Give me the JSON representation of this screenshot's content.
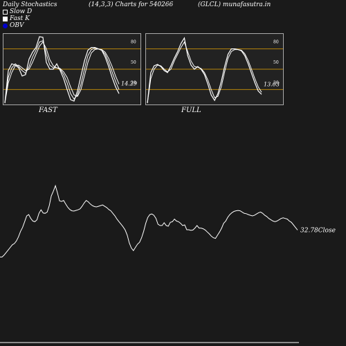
{
  "header": {
    "left": "Daily Stochastics",
    "center": "(14,3,3) Charts for 540266",
    "right": "(GLCL) munafasutra.in"
  },
  "legend": [
    {
      "label": "Slow  D",
      "swatch": "slow"
    },
    {
      "label": "Fast K",
      "swatch": "fast"
    },
    {
      "label": "OBV",
      "swatch": "obv"
    }
  ],
  "colors": {
    "background": "#1a1a1a",
    "panel_bg": "#222222",
    "line": "#ffffff",
    "obv": "#0000cc",
    "level": "#b8860b"
  },
  "chart_data": [
    {
      "type": "line",
      "title": "FAST",
      "ylim": [
        0,
        100
      ],
      "levels": [
        20,
        50,
        80
      ],
      "level_labels": [
        "20",
        "50",
        "80"
      ],
      "last_label": "14.29",
      "series": [
        {
          "values": [
            0,
            48,
            58,
            56,
            52,
            40,
            42,
            65,
            75,
            82,
            98,
            97,
            60,
            50,
            50,
            58,
            48,
            36,
            20,
            5,
            3,
            18,
            40,
            62,
            78,
            82,
            82,
            80,
            78,
            68,
            54,
            38,
            24,
            14
          ]
        },
        {
          "values": [
            0,
            38,
            52,
            58,
            54,
            48,
            44,
            54,
            68,
            78,
            90,
            92,
            72,
            56,
            52,
            52,
            50,
            42,
            30,
            14,
            6,
            12,
            28,
            50,
            70,
            79,
            81,
            80,
            78,
            72,
            60,
            46,
            32,
            20
          ]
        },
        {
          "values": [
            0,
            30,
            45,
            55,
            56,
            52,
            48,
            50,
            60,
            72,
            84,
            90,
            80,
            64,
            55,
            52,
            51,
            46,
            38,
            24,
            12,
            10,
            20,
            40,
            60,
            74,
            79,
            80,
            79,
            75,
            66,
            54,
            40,
            28
          ]
        }
      ]
    },
    {
      "type": "line",
      "title": "FULL",
      "ylim": [
        0,
        100
      ],
      "levels": [
        20,
        50,
        80
      ],
      "level_labels": [
        "20",
        "50",
        "80"
      ],
      "last_label": "13.03",
      "series": [
        {
          "values": [
            0,
            45,
            55,
            57,
            54,
            48,
            45,
            55,
            66,
            76,
            88,
            96,
            70,
            56,
            50,
            54,
            50,
            42,
            28,
            12,
            4,
            14,
            32,
            54,
            72,
            80,
            80,
            79,
            77,
            70,
            58,
            44,
            30,
            18,
            13
          ]
        },
        {
          "values": [
            0,
            36,
            50,
            56,
            55,
            50,
            46,
            50,
            62,
            72,
            82,
            90,
            76,
            62,
            54,
            53,
            51,
            45,
            34,
            20,
            8,
            10,
            24,
            46,
            66,
            76,
            79,
            79,
            78,
            73,
            63,
            50,
            36,
            24,
            16
          ]
        }
      ]
    },
    {
      "type": "line",
      "last_label": "32.78",
      "last_suffix": "Close",
      "series": [
        {
          "name": "Close",
          "values": [
            40,
            40,
            46,
            54,
            62,
            70,
            78,
            82,
            90,
            103,
            120,
            132,
            150,
            168,
            172,
            160,
            152,
            150,
            156,
            176,
            187,
            177,
            176,
            180,
            200,
            230,
            245,
            262,
            240,
            215,
            213,
            216,
            205,
            195,
            188,
            184,
            183,
            185,
            187,
            190,
            198,
            208,
            216,
            212,
            205,
            200,
            197,
            196,
            198,
            200,
            202,
            198,
            194,
            188,
            184,
            176,
            168,
            158,
            150,
            142,
            134,
            124,
            108,
            84,
            68,
            60,
            70,
            80,
            86,
            100,
            120,
            145,
            163,
            172,
            174,
            170,
            160,
            142,
            138,
            138,
            147,
            138,
            136,
            148,
            150,
            158,
            152,
            150,
            145,
            138,
            140,
            125,
            125,
            123,
            124,
            130,
            138,
            130,
            130,
            128,
            124,
            118,
            112,
            105,
            100,
            98,
            108,
            118,
            130,
            145,
            152,
            164,
            172,
            178,
            182,
            184,
            185,
            184,
            180,
            176,
            175,
            172,
            170,
            168,
            170,
            174,
            178,
            180,
            176,
            170,
            166,
            160,
            156,
            152,
            150,
            152,
            156,
            160,
            162,
            160,
            158,
            152,
            148,
            140,
            132,
            124
          ]
        },
        {
          "name": "OBV",
          "values": [
            0,
            0,
            0,
            0,
            0,
            0,
            0,
            0,
            0,
            0,
            0,
            0,
            0,
            0,
            0,
            0,
            0,
            0,
            0,
            0,
            0,
            0,
            0,
            0,
            0,
            0,
            0,
            0,
            0,
            0,
            0,
            0,
            0,
            0,
            0,
            0,
            0,
            0,
            0,
            0,
            0,
            0,
            0,
            0,
            0,
            0,
            0,
            0,
            0,
            0,
            0,
            0,
            0,
            0,
            0,
            0,
            0,
            0,
            0,
            0,
            0,
            0,
            0,
            0,
            0,
            0,
            0,
            0,
            0,
            0,
            0,
            0,
            0,
            0,
            0,
            0,
            0,
            0,
            0,
            0,
            0,
            0,
            0,
            0,
            0,
            0,
            0,
            0,
            0,
            0,
            0,
            0,
            0,
            0,
            0,
            0,
            0,
            0,
            0,
            0,
            0,
            0,
            0,
            0,
            0,
            0,
            0,
            0,
            0,
            0,
            0,
            0,
            0,
            0,
            0,
            0,
            0,
            0,
            0,
            0,
            0,
            0,
            0,
            0,
            0,
            0,
            0,
            0,
            0,
            0,
            0,
            0,
            0,
            0,
            0,
            0,
            0,
            0,
            0,
            0,
            0,
            0,
            0,
            0,
            0,
            0,
            0,
            0,
            0,
            0,
            0,
            0,
            0
          ]
        }
      ]
    }
  ]
}
